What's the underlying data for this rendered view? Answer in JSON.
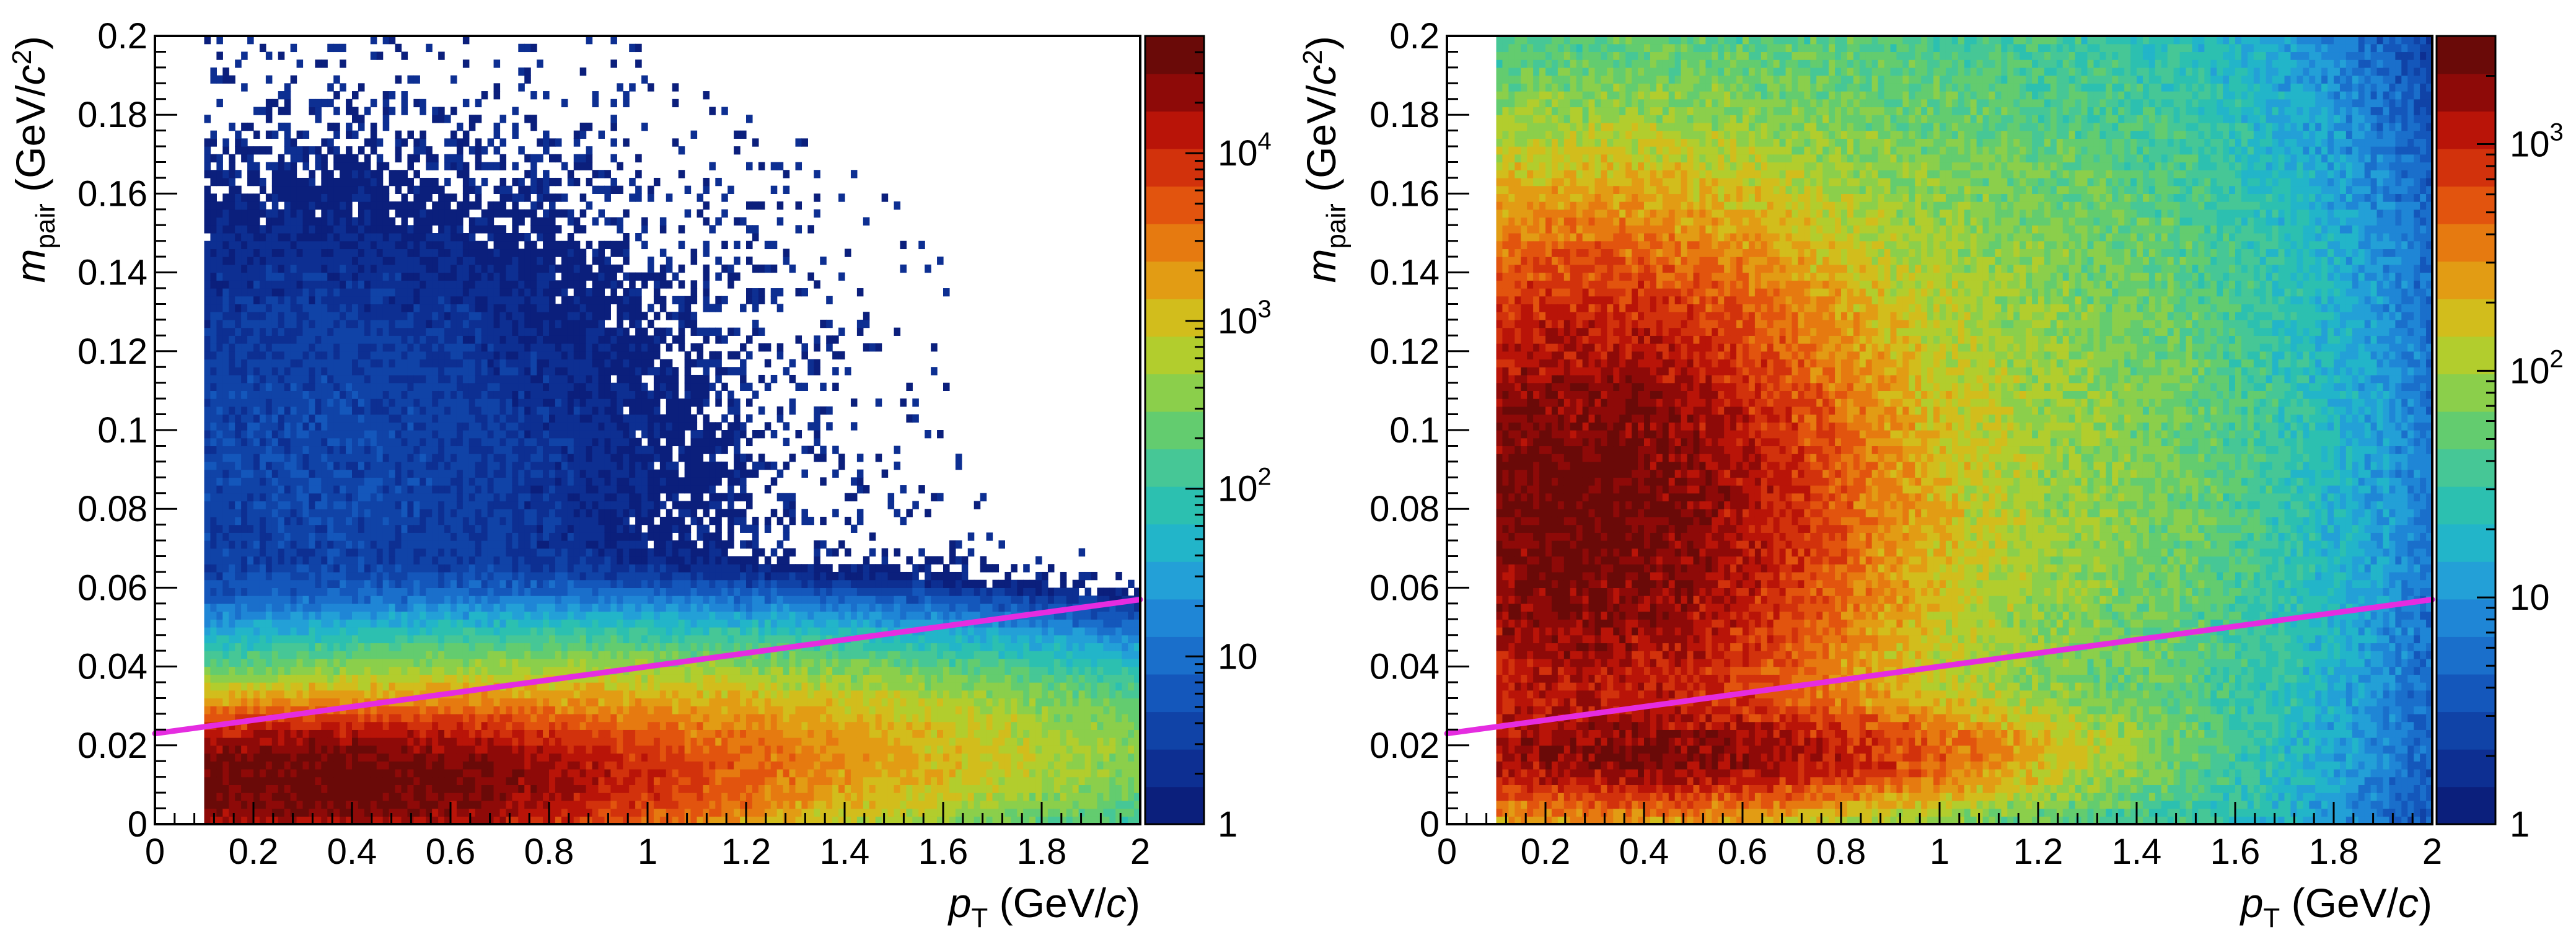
{
  "chart_data": [
    {
      "type": "heatmap",
      "title": "",
      "xlabel": {
        "var": "p",
        "sub": "T",
        "unit_pre": " (GeV/",
        "unit_var": "c",
        "unit_post": ")"
      },
      "ylabel": {
        "var": "m",
        "sub": "pair",
        "unit_pre": " (GeV/",
        "unit_var": "c",
        "unit_sup": "2",
        "unit_post": ")"
      },
      "xlim": [
        0,
        2
      ],
      "ylim": [
        0,
        0.2
      ],
      "x_ticks": [
        "0",
        "0.2",
        "0.4",
        "0.6",
        "0.8",
        "1",
        "1.2",
        "1.4",
        "1.6",
        "1.8",
        "2"
      ],
      "y_ticks": [
        "0",
        "0.02",
        "0.04",
        "0.06",
        "0.08",
        "0.1",
        "0.12",
        "0.14",
        "0.16",
        "0.18",
        "0.2"
      ],
      "z_scale": "log",
      "zlim": [
        1,
        50000
      ],
      "z_ticks": [
        {
          "value": 1,
          "base": "1",
          "exp": ""
        },
        {
          "value": 10,
          "base": "10",
          "exp": ""
        },
        {
          "value": 100,
          "base": "10",
          "exp": "2"
        },
        {
          "value": 1000,
          "base": "10",
          "exp": "3"
        },
        {
          "value": 10000,
          "base": "10",
          "exp": "4"
        }
      ],
      "density_components": [
        {
          "label": "low-mass band",
          "x": 0.35,
          "y": 0.011,
          "sx": 0.35,
          "sy": 0.008,
          "peak": 45000
        },
        {
          "label": "band tail",
          "x": 0.9,
          "y": 0.018,
          "sx": 0.55,
          "sy": 0.012,
          "peak": 2500
        },
        {
          "label": "high-mass tail",
          "x": 0.3,
          "y": 0.09,
          "sx": 0.5,
          "sy": 0.045,
          "peak": 4
        }
      ],
      "x_min_populated": 0.1,
      "cut_line": {
        "x": [
          0,
          2
        ],
        "y": [
          0.023,
          0.057
        ],
        "color": "#e52ce0"
      }
    },
    {
      "type": "heatmap",
      "title": "",
      "xlabel": {
        "var": "p",
        "sub": "T",
        "unit_pre": " (GeV/",
        "unit_var": "c",
        "unit_post": ")"
      },
      "ylabel": {
        "var": "m",
        "sub": "pair",
        "unit_pre": " (GeV/",
        "unit_var": "c",
        "unit_sup": "2",
        "unit_post": ")"
      },
      "xlim": [
        0,
        2
      ],
      "ylim": [
        0,
        0.2
      ],
      "x_ticks": [
        "0",
        "0.2",
        "0.4",
        "0.6",
        "0.8",
        "1",
        "1.2",
        "1.4",
        "1.6",
        "1.8",
        "2"
      ],
      "y_ticks": [
        "0",
        "0.02",
        "0.04",
        "0.06",
        "0.08",
        "0.1",
        "0.12",
        "0.14",
        "0.16",
        "0.18",
        "0.2"
      ],
      "z_scale": "log",
      "zlim": [
        1,
        3000
      ],
      "z_ticks": [
        {
          "value": 1,
          "base": "1",
          "exp": ""
        },
        {
          "value": 10,
          "base": "10",
          "exp": ""
        },
        {
          "value": 100,
          "base": "10",
          "exp": "2"
        },
        {
          "value": 1000,
          "base": "10",
          "exp": "3"
        }
      ],
      "density_components": [
        {
          "label": "broad high-mass lobe",
          "x": 0.27,
          "y": 0.08,
          "sx": 0.28,
          "sy": 0.035,
          "peak": 2500
        },
        {
          "label": "low-mass band",
          "x": 0.45,
          "y": 0.018,
          "sx": 0.35,
          "sy": 0.007,
          "peak": 1500
        },
        {
          "label": "extended halo",
          "x": 0.7,
          "y": 0.09,
          "sx": 0.7,
          "sy": 0.08,
          "peak": 120
        }
      ],
      "x_min_populated": 0.1,
      "cut_line": {
        "x": [
          0,
          2
        ],
        "y": [
          0.023,
          0.057
        ],
        "color": "#e52ce0"
      }
    }
  ],
  "palette": [
    "#0b1f7c",
    "#0d2f92",
    "#1043a7",
    "#1457bb",
    "#1a6fcb",
    "#1f86d6",
    "#23a0d7",
    "#22b5c9",
    "#2cc0b0",
    "#46c796",
    "#63cc6f",
    "#8bcf4b",
    "#b2cd2d",
    "#d2bd1c",
    "#e29c14",
    "#e67a10",
    "#e2540e",
    "#d2320c",
    "#b91408",
    "#8e0a08",
    "#6a0a08"
  ]
}
